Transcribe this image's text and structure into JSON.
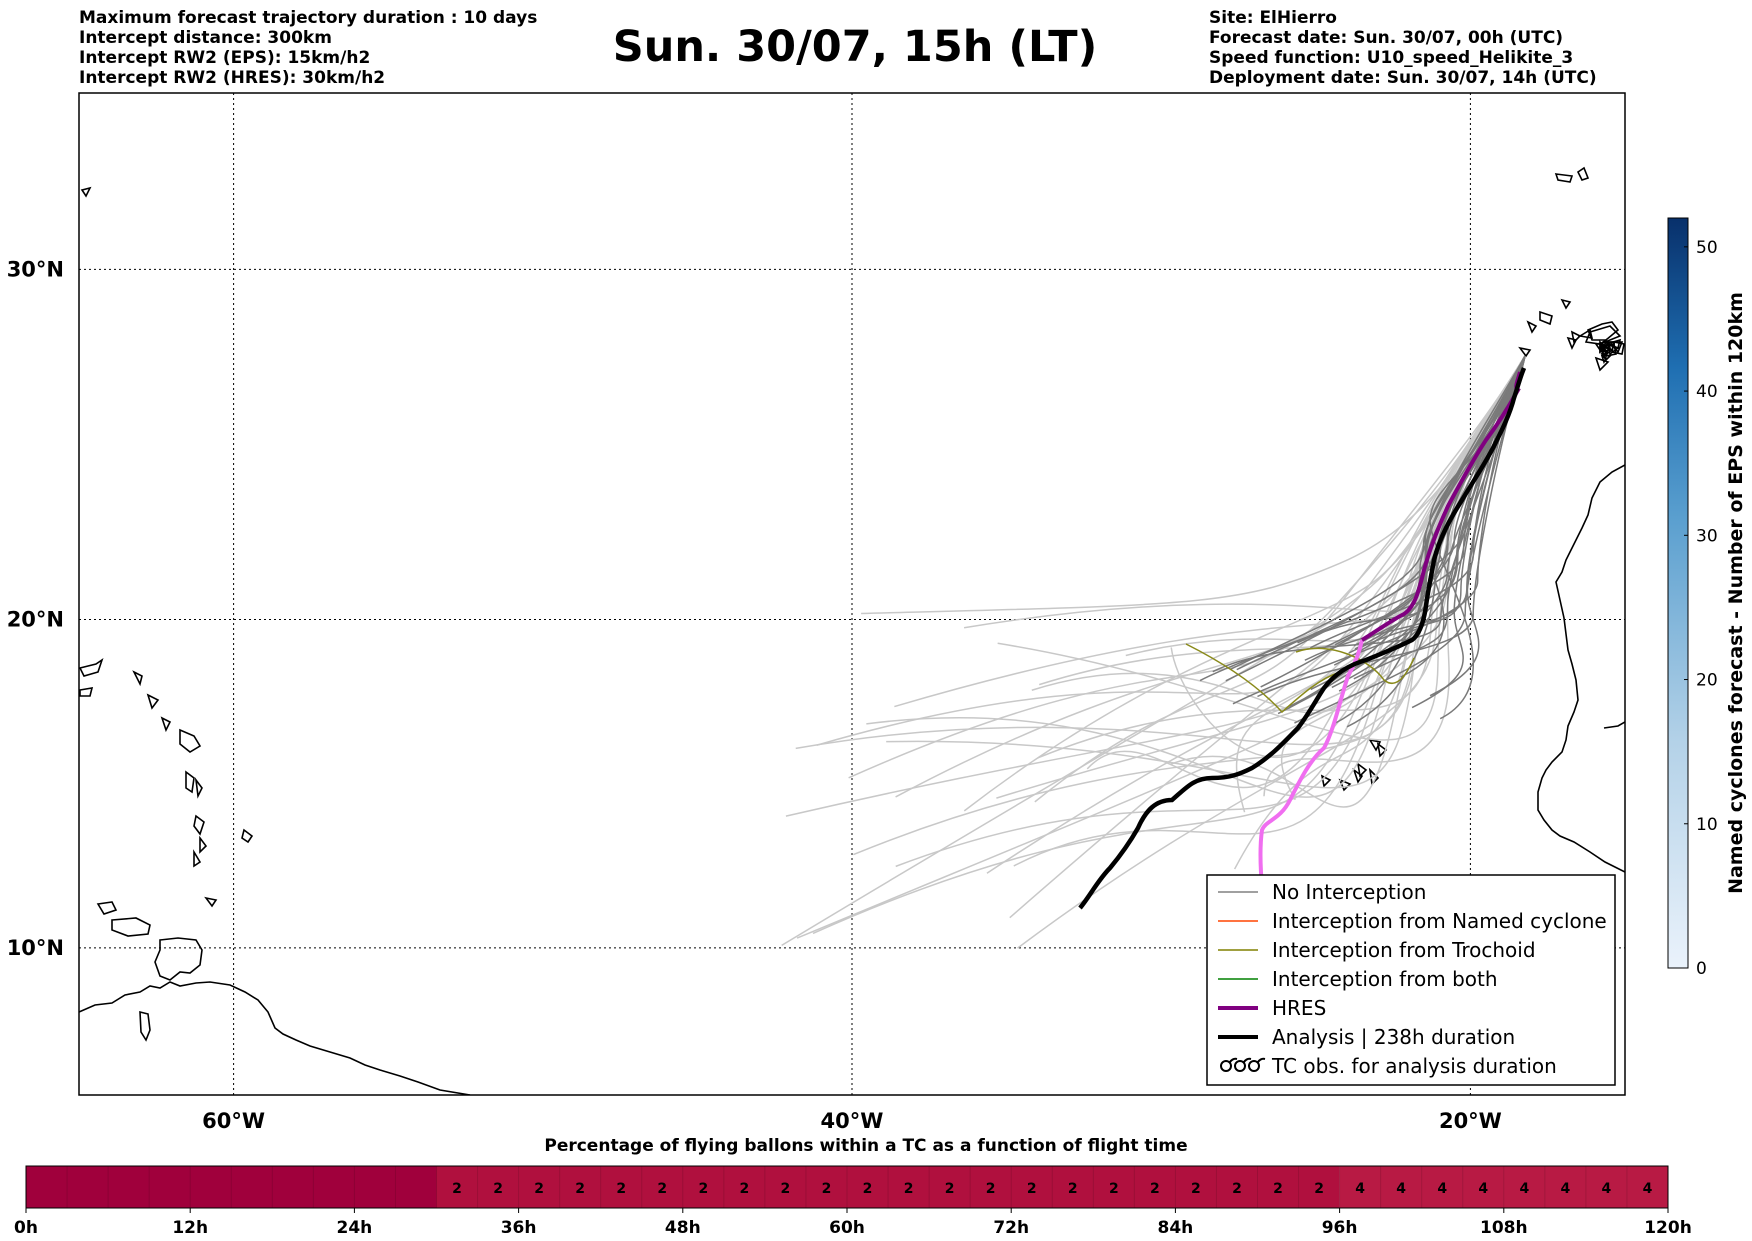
{
  "header": {
    "left": [
      "Maximum forecast trajectory duration : 10 days",
      "Intercept distance: 300km",
      "Intercept RW2 (EPS):  15km/h2",
      "Intercept RW2 (HRES): 30km/h2"
    ],
    "title": "Sun. 30/07, 15h (LT)",
    "right": [
      "Site: ElHierro",
      "Forecast date: Sun. 30/07, 00h (UTC)",
      "Speed function: U10_speed_Helikite_3",
      "Deployment date: Sun. 30/07, 14h (UTC)"
    ]
  },
  "map": {
    "lat_labels": [
      "30°N",
      "20°N",
      "10°N"
    ],
    "lon_labels": [
      "60°W",
      "40°W",
      "20°W"
    ],
    "lat_values": [
      30,
      20,
      10
    ],
    "lon_values": [
      -60,
      -40,
      -20
    ],
    "extent": {
      "lon_min": -65,
      "lon_max": -15,
      "lat_min": 5.4,
      "lat_max": 34.7
    }
  },
  "legend": {
    "items": [
      {
        "label": "No Interception",
        "color": "#808080",
        "style": "thin-line"
      },
      {
        "label": "Interception from Named cyclone",
        "color": "#ff4500",
        "style": "thin-line"
      },
      {
        "label": "Interception from Trochoid",
        "color": "#808000",
        "style": "thin-line"
      },
      {
        "label": "Interception from both",
        "color": "#008000",
        "style": "thin-line"
      },
      {
        "label": "HRES",
        "color": "#800080",
        "style": "thick-line"
      },
      {
        "label": "Analysis | 238h duration",
        "color": "#000000",
        "style": "thick-line"
      },
      {
        "label": "TC obs. for analysis duration",
        "color": "#000000",
        "style": "cyclone-symbols"
      }
    ]
  },
  "colorbar": {
    "label": "Named cyclones forecast - Number of EPS within 120km",
    "ticks": [
      "0",
      "10",
      "20",
      "30",
      "40",
      "50"
    ],
    "tick_values": [
      0,
      10,
      20,
      30,
      40,
      50
    ],
    "max": 52,
    "color_low": "#e8f0fa",
    "color_high": "#08306b"
  },
  "time_bar": {
    "title": "Percentage of flying ballons within a TC as a function of flight time",
    "ticks": [
      "0h",
      "12h",
      "24h",
      "36h",
      "48h",
      "60h",
      "72h",
      "84h",
      "96h",
      "108h",
      "120h"
    ],
    "hours_max": 120,
    "segment_hours": 3,
    "segments": [
      {
        "from_h": 0,
        "to_h": 30,
        "value": ""
      },
      {
        "from_h": 30,
        "to_h": 96,
        "value": "2"
      },
      {
        "from_h": 96,
        "to_h": 120,
        "value": "4"
      }
    ],
    "colors": {
      "": "#a0003c",
      "2": "#b0103e",
      "4": "#b81a44"
    }
  }
}
